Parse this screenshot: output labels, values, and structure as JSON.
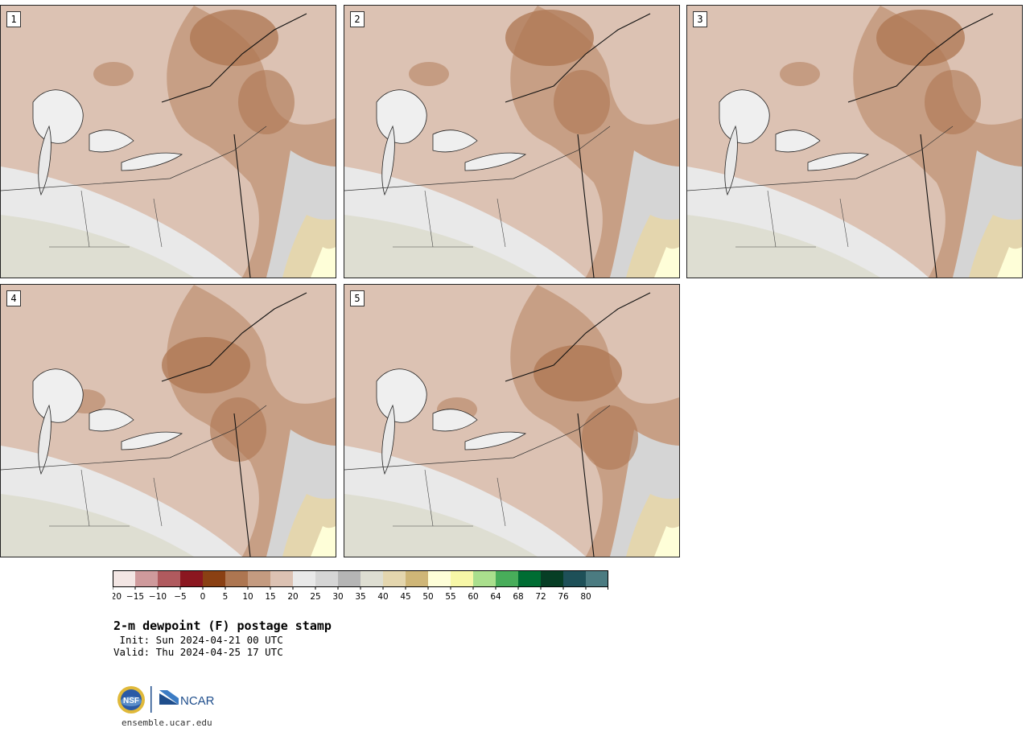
{
  "panels": [
    {
      "label": "1"
    },
    {
      "label": "2"
    },
    {
      "label": "3"
    },
    {
      "label": "4"
    },
    {
      "label": "5"
    }
  ],
  "colorbar": {
    "colors": [
      "#f3e6e4",
      "#cf9a9c",
      "#b05a5e",
      "#8b1720",
      "#8a4013",
      "#ad7651",
      "#c49b80",
      "#dcc2b3",
      "#e9e9e9",
      "#d5d5d5",
      "#b5b5b5",
      "#deded2",
      "#e4d6ae",
      "#cfb677",
      "#fefed8",
      "#f7f7a7",
      "#aadf8d",
      "#48ad5a",
      "#006d33",
      "#073e25",
      "#1e5058",
      "#4b7b81"
    ],
    "ticks": [
      "−20",
      "−15",
      "−10",
      "−5",
      "0",
      "5",
      "10",
      "15",
      "20",
      "25",
      "30",
      "35",
      "40",
      "45",
      "50",
      "55",
      "60",
      "64",
      "68",
      "72",
      "76",
      "80"
    ]
  },
  "title": {
    "main": "2-m dewpoint (F) postage stamp",
    "init": " Init: Sun 2024-04-21 00 UTC",
    "valid": "Valid: Thu 2024-04-25 17 UTC"
  },
  "footer": {
    "logo_left": "NSF",
    "logo_right": "NCAR",
    "site": "ensemble.ucar.edu"
  }
}
